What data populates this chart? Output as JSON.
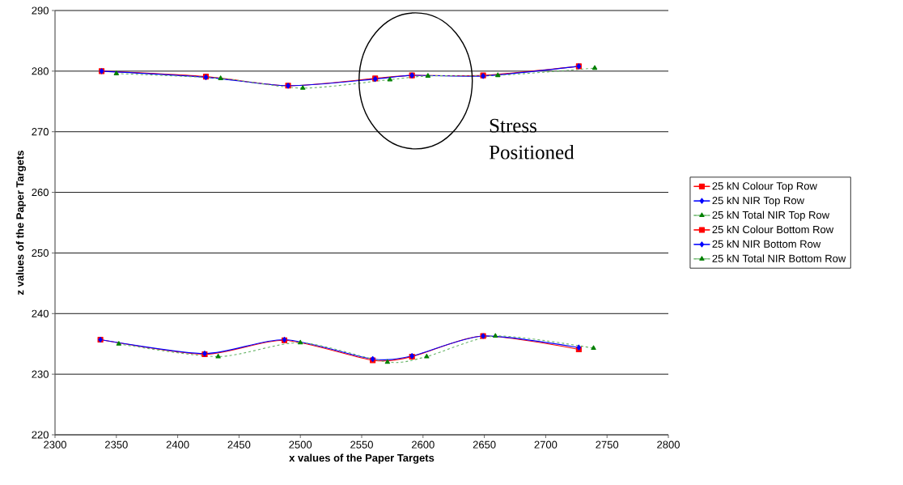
{
  "chart_data": {
    "type": "line",
    "xlabel": "x values of the Paper Targets",
    "ylabel": "z values of the Paper Targets",
    "annotations": [
      "Stress Positioned"
    ],
    "xlim": [
      2300,
      2800
    ],
    "xticks": [
      2300,
      2350,
      2400,
      2450,
      2500,
      2550,
      2600,
      2650,
      2700,
      2750,
      2800
    ],
    "ylim": [
      220,
      290
    ],
    "yticks": [
      220,
      230,
      240,
      250,
      260,
      270,
      280,
      290
    ],
    "grid": "y",
    "legend": "right",
    "series": [
      {
        "name": "25 kN Colour Top Row",
        "color": "#ff0000",
        "marker": "square",
        "line_style": "solid",
        "x": [
          2338,
          2423,
          2490,
          2561,
          2591,
          2649,
          2727
        ],
        "values": [
          280.0,
          279.1,
          277.6,
          278.8,
          279.3,
          279.3,
          280.8
        ]
      },
      {
        "name": "25 kN NIR Top Row",
        "color": "#0000ff",
        "marker": "diamond",
        "line_style": "solid",
        "x": [
          2338,
          2423,
          2490,
          2561,
          2591,
          2649,
          2727
        ],
        "values": [
          280.0,
          279.0,
          277.6,
          278.7,
          279.3,
          279.2,
          280.8
        ]
      },
      {
        "name": "25 kN Total NIR Top Row",
        "color": "#008000",
        "marker": "triangle",
        "line_style": "dashed",
        "x": [
          2350,
          2435,
          2502,
          2573,
          2604,
          2661,
          2740
        ],
        "values": [
          279.6,
          278.8,
          277.2,
          278.6,
          279.2,
          279.3,
          280.5
        ]
      },
      {
        "name": "25 kN Colour Bottom Row",
        "color": "#ff0000",
        "marker": "square",
        "line_style": "solid",
        "x": [
          2337,
          2422,
          2487,
          2559,
          2591,
          2649,
          2727
        ],
        "values": [
          235.7,
          233.3,
          235.6,
          232.3,
          232.9,
          236.3,
          234.1
        ]
      },
      {
        "name": "25 kN NIR Bottom Row",
        "color": "#0000ff",
        "marker": "diamond",
        "line_style": "solid",
        "x": [
          2337,
          2422,
          2487,
          2559,
          2591,
          2649,
          2727
        ],
        "values": [
          235.7,
          233.4,
          235.7,
          232.5,
          233.0,
          236.3,
          234.4
        ]
      },
      {
        "name": "25 kN Total NIR Bottom Row",
        "color": "#008000",
        "marker": "triangle",
        "line_style": "dashed",
        "x": [
          2352,
          2433,
          2500,
          2571,
          2603,
          2659,
          2739
        ],
        "values": [
          235.0,
          232.9,
          235.2,
          232.0,
          232.9,
          236.3,
          234.3
        ]
      }
    ]
  }
}
